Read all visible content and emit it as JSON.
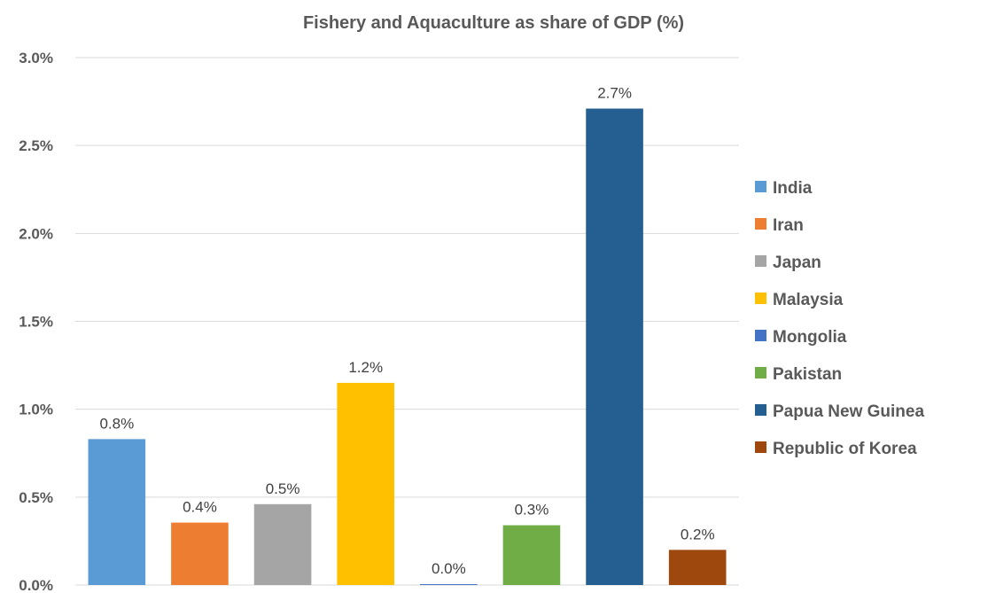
{
  "chart_data": {
    "type": "bar",
    "title": "Fishery and Aquaculture as share of GDP (%)",
    "xlabel": "",
    "ylabel": "",
    "ylim": [
      0,
      3.0
    ],
    "y_ticks": [
      "0.0%",
      "0.5%",
      "1.0%",
      "1.5%",
      "2.0%",
      "2.5%",
      "3.0%"
    ],
    "grid": true,
    "legend_position": "right",
    "series": [
      {
        "name": "India",
        "value": 0.83,
        "label": "0.8%",
        "color": "#5b9bd5"
      },
      {
        "name": "Iran",
        "value": 0.355,
        "label": "0.4%",
        "color": "#ed7d31"
      },
      {
        "name": "Japan",
        "value": 0.46,
        "label": "0.5%",
        "color": "#a5a5a5"
      },
      {
        "name": "Malaysia",
        "value": 1.15,
        "label": "1.2%",
        "color": "#ffc000"
      },
      {
        "name": "Mongolia",
        "value": 0.005,
        "label": "0.0%",
        "color": "#4472c4"
      },
      {
        "name": "Pakistan",
        "value": 0.34,
        "label": "0.3%",
        "color": "#70ad47"
      },
      {
        "name": "Papua New Guinea",
        "value": 2.71,
        "label": "2.7%",
        "color": "#255e91"
      },
      {
        "name": "Republic of Korea",
        "value": 0.2,
        "label": "0.2%",
        "color": "#9e480e"
      }
    ]
  }
}
